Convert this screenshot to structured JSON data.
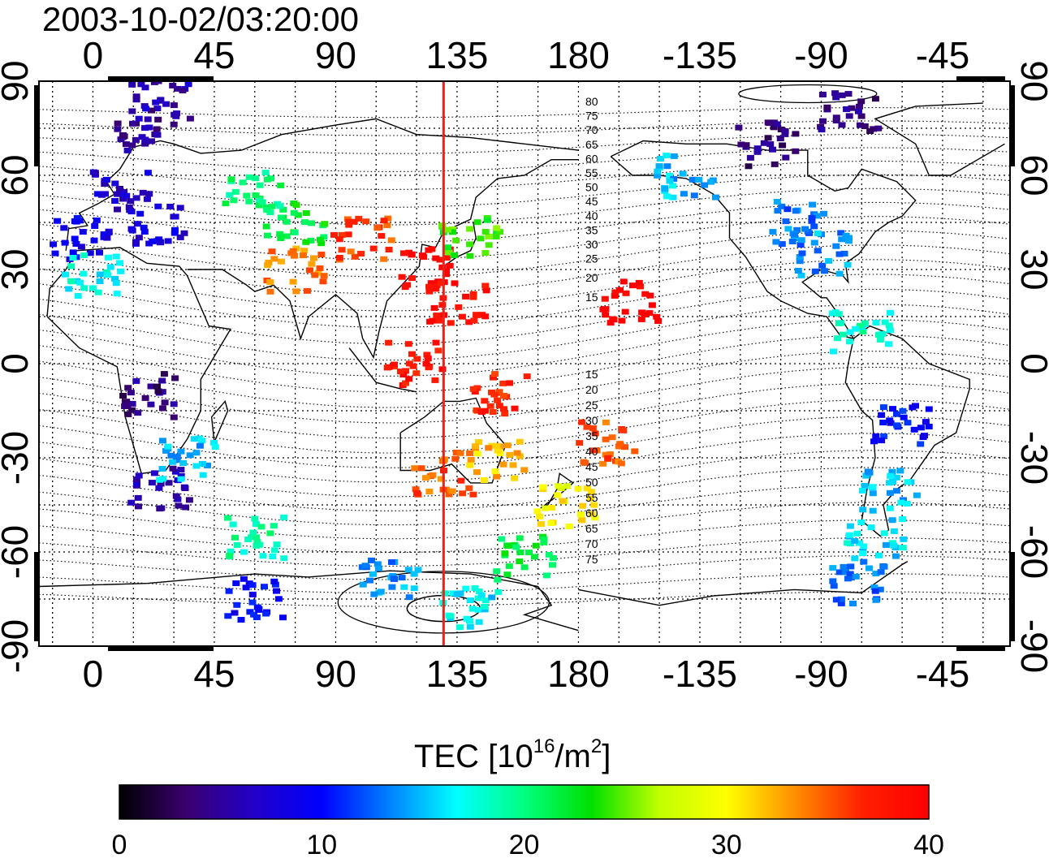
{
  "timestamp": "2003-10-02/03:20:00",
  "lon_ticks": [
    "0",
    "45",
    "90",
    "135",
    "180",
    "-135",
    "-90",
    "-45"
  ],
  "lat_ticks": [
    "90",
    "60",
    "30",
    "0",
    "-30",
    "-60",
    "-90"
  ],
  "contour_labels": {
    "north": [
      "80",
      "75",
      "70",
      "65",
      "60",
      "55",
      "50",
      "45",
      "40",
      "35",
      "30",
      "25",
      "20",
      "15"
    ],
    "south": [
      "15",
      "20",
      "25",
      "30",
      "35",
      "40",
      "45",
      "50",
      "55",
      "60",
      "65",
      "70",
      "75"
    ]
  },
  "meridian_longitude": 130,
  "colors": {
    "meridian_line": "#e8231c",
    "frame": "#000000",
    "gridline": "#000000"
  },
  "colorbar": {
    "title": "TEC  [10",
    "title_sup": "16",
    "title_mid": "/m",
    "title_sup2": "2",
    "title_end": "]",
    "min": 0,
    "max": 40,
    "ticks": [
      "0",
      "10",
      "20",
      "30",
      "40"
    ],
    "colormap": [
      "#000000",
      "#3a0070",
      "#2200c8",
      "#0000ff",
      "#0080ff",
      "#00ffff",
      "#00ff80",
      "#00e000",
      "#c0ff00",
      "#ffff00",
      "#ff9000",
      "#ff2000",
      "#ff0000"
    ]
  },
  "tec_clusters": [
    {
      "lon": 10,
      "lat": 55,
      "tec": 7
    },
    {
      "lon": 25,
      "lat": 45,
      "tec": 8
    },
    {
      "lon": -5,
      "lat": 40,
      "tec": 9
    },
    {
      "lon": 0,
      "lat": 28,
      "tec": 17
    },
    {
      "lon": 20,
      "lat": 75,
      "tec": 5
    },
    {
      "lon": 25,
      "lat": 85,
      "tec": 6
    },
    {
      "lon": 20,
      "lat": -10,
      "tec": 4
    },
    {
      "lon": 25,
      "lat": -40,
      "tec": 6
    },
    {
      "lon": 60,
      "lat": 55,
      "tec": 20
    },
    {
      "lon": 75,
      "lat": 45,
      "tec": 22
    },
    {
      "lon": 75,
      "lat": 30,
      "tec": 34
    },
    {
      "lon": 100,
      "lat": 40,
      "tec": 36
    },
    {
      "lon": 125,
      "lat": 30,
      "tec": 40
    },
    {
      "lon": 140,
      "lat": 40,
      "tec": 24
    },
    {
      "lon": 135,
      "lat": 20,
      "tec": 39
    },
    {
      "lon": 120,
      "lat": 0,
      "tec": 38
    },
    {
      "lon": 150,
      "lat": -10,
      "tec": 37
    },
    {
      "lon": 130,
      "lat": -35,
      "tec": 35
    },
    {
      "lon": 150,
      "lat": -30,
      "tec": 32
    },
    {
      "lon": 175,
      "lat": -45,
      "tec": 30
    },
    {
      "lon": -160,
      "lat": 20,
      "tec": 40
    },
    {
      "lon": -170,
      "lat": -25,
      "tec": 35
    },
    {
      "lon": -140,
      "lat": 60,
      "tec": 15
    },
    {
      "lon": -100,
      "lat": 45,
      "tec": 13
    },
    {
      "lon": -90,
      "lat": 35,
      "tec": 14
    },
    {
      "lon": -110,
      "lat": 70,
      "tec": 4
    },
    {
      "lon": -80,
      "lat": 80,
      "tec": 4
    },
    {
      "lon": -75,
      "lat": 10,
      "tec": 18
    },
    {
      "lon": -60,
      "lat": -20,
      "tec": 10
    },
    {
      "lon": -65,
      "lat": -40,
      "tec": 15
    },
    {
      "lon": -70,
      "lat": -55,
      "tec": 16
    },
    {
      "lon": -75,
      "lat": -70,
      "tec": 13
    },
    {
      "lon": 60,
      "lat": -75,
      "tec": 10
    },
    {
      "lon": 140,
      "lat": -78,
      "tec": 16
    },
    {
      "lon": 110,
      "lat": -68,
      "tec": 14
    },
    {
      "lon": 60,
      "lat": -55,
      "tec": 19
    },
    {
      "lon": 160,
      "lat": -62,
      "tec": 22
    },
    {
      "lon": 35,
      "lat": -30,
      "tec": 15
    }
  ]
}
